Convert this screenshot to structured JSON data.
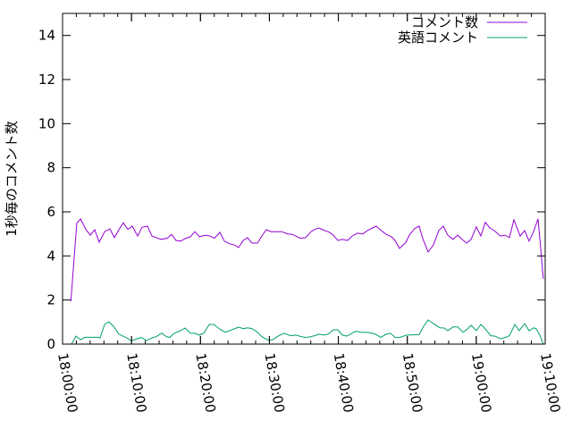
{
  "chart_data": {
    "type": "line",
    "title": "",
    "xlabel": "",
    "ylabel": "1秒毎のコメント数",
    "xlim": [
      "18:00:00",
      "19:10:00"
    ],
    "ylim": [
      0,
      15
    ],
    "xticks": [
      "18:00:00",
      "18:10:00",
      "18:20:00",
      "18:30:00",
      "18:40:00",
      "18:50:00",
      "19:00:00",
      "19:10:00"
    ],
    "yticks": [
      "0",
      "2",
      "4",
      "6",
      "8",
      "10",
      "12",
      "14"
    ],
    "grid": false,
    "legend": "top-right",
    "series": [
      {
        "name": "コメント数",
        "color": "#9400d3",
        "x": [
          "18:01:12",
          "18:02:04",
          "18:02:36",
          "18:03:22",
          "18:04:01",
          "18:04:40",
          "18:05:19",
          "18:06:06",
          "18:06:52",
          "18:07:31",
          "18:08:10",
          "18:08:49",
          "18:09:28",
          "18:10:07",
          "18:10:53",
          "18:11:32",
          "18:12:19",
          "18:12:58",
          "18:14:16",
          "18:15:10",
          "18:15:49",
          "18:16:28",
          "18:17:07",
          "18:17:53",
          "18:18:32",
          "18:19:11",
          "18:19:50",
          "18:20:44",
          "18:21:23",
          "18:22:02",
          "18:22:49",
          "18:23:28",
          "18:24:14",
          "18:24:53",
          "18:25:32",
          "18:26:11",
          "18:26:50",
          "18:27:29",
          "18:28:16",
          "18:28:54",
          "18:29:33",
          "18:30:12",
          "18:31:46",
          "18:32:40",
          "18:33:19",
          "18:34:29",
          "18:35:16",
          "18:36:02",
          "18:36:33",
          "18:37:12",
          "18:37:51",
          "18:38:30",
          "18:39:09",
          "18:39:56",
          "18:40:34",
          "18:41:21",
          "18:42:00",
          "18:42:47",
          "18:43:33",
          "18:44:12",
          "18:44:59",
          "18:45:30",
          "18:46:09",
          "18:46:56",
          "18:47:42",
          "18:48:13",
          "18:48:52",
          "18:49:47",
          "18:50:18",
          "18:51:04",
          "18:51:43",
          "18:52:14",
          "18:53:01",
          "18:53:48",
          "18:54:34",
          "18:55:13",
          "18:55:52",
          "18:56:39",
          "18:57:18",
          "18:57:57",
          "18:58:36",
          "18:59:15",
          "19:00:01",
          "19:00:40",
          "19:01:19",
          "19:01:58",
          "19:02:37",
          "19:03:31",
          "19:04:10",
          "19:04:49",
          "19:05:28",
          "19:06:22",
          "19:07:01",
          "19:07:40",
          "19:08:19",
          "19:08:58",
          "19:09:21",
          "19:09:44"
        ],
        "values": [
          1.94,
          5.48,
          5.68,
          5.2,
          4.94,
          5.19,
          4.62,
          5.1,
          5.23,
          4.83,
          5.19,
          5.5,
          5.2,
          5.35,
          4.9,
          5.3,
          5.35,
          4.9,
          4.75,
          4.8,
          4.98,
          4.7,
          4.67,
          4.8,
          4.87,
          5.1,
          4.87,
          4.94,
          4.9,
          4.8,
          5.07,
          4.67,
          4.55,
          4.5,
          4.38,
          4.7,
          4.83,
          4.58,
          4.58,
          4.9,
          5.19,
          5.1,
          5.1,
          5.0,
          4.98,
          4.8,
          4.83,
          5.1,
          5.2,
          5.27,
          5.17,
          5.1,
          4.98,
          4.7,
          4.75,
          4.7,
          4.9,
          5.03,
          5.0,
          5.15,
          5.27,
          5.35,
          5.17,
          4.98,
          4.87,
          4.7,
          4.34,
          4.6,
          4.94,
          5.24,
          5.35,
          4.8,
          4.18,
          4.5,
          5.15,
          5.35,
          4.94,
          4.75,
          4.94,
          4.75,
          4.58,
          4.75,
          5.32,
          4.9,
          5.52,
          5.27,
          5.15,
          4.9,
          4.94,
          4.83,
          5.64,
          4.9,
          5.15,
          4.67,
          5.1,
          5.68,
          4.34,
          2.96
        ]
      },
      {
        "name": "英語コメント",
        "color": "#009e73",
        "x": [
          "18:01:18",
          "18:01:57",
          "18:02:36",
          "18:03:14",
          "18:05:11",
          "18:05:27",
          "18:06:06",
          "18:06:44",
          "18:07:23",
          "18:08:10",
          "18:09:20",
          "18:09:59",
          "18:10:46",
          "18:11:24",
          "18:12:11",
          "18:12:58",
          "18:13:37",
          "18:14:23",
          "18:15:02",
          "18:15:33",
          "18:16:12",
          "18:17:07",
          "18:17:46",
          "18:18:32",
          "18:19:11",
          "18:19:50",
          "18:20:29",
          "18:21:16",
          "18:21:54",
          "18:22:57",
          "18:23:36",
          "18:24:14",
          "18:24:53",
          "18:25:32",
          "18:26:11",
          "18:26:50",
          "18:27:29",
          "18:28:08",
          "18:28:54",
          "18:29:49",
          "18:30:28",
          "18:31:22",
          "18:32:09",
          "18:33:03",
          "18:33:50",
          "18:34:37",
          "18:35:16",
          "18:36:02",
          "18:36:33",
          "18:37:12",
          "18:37:51",
          "18:38:30",
          "18:39:17",
          "18:39:56",
          "18:40:34",
          "18:41:13",
          "18:42:31",
          "18:43:26",
          "18:44:20",
          "18:45:22",
          "18:46:09",
          "18:46:56",
          "18:47:34",
          "18:48:13",
          "18:48:52",
          "18:49:55",
          "18:51:43",
          "18:52:22",
          "18:53:01",
          "18:53:48",
          "18:54:42",
          "18:55:21",
          "18:55:52",
          "18:56:39",
          "18:57:18",
          "18:58:05",
          "18:58:36",
          "18:59:15",
          "19:00:01",
          "19:00:40",
          "19:01:19",
          "19:02:06",
          "19:02:44",
          "19:03:31",
          "19:04:18",
          "19:04:49",
          "19:05:36",
          "19:06:14",
          "19:07:01",
          "19:07:40",
          "19:08:19",
          "19:08:42",
          "19:09:13",
          "19:09:44"
        ],
        "values": [
          0.0,
          0.36,
          0.2,
          0.31,
          0.31,
          0.28,
          0.9,
          1.01,
          0.81,
          0.45,
          0.28,
          0.14,
          0.24,
          0.3,
          0.16,
          0.28,
          0.34,
          0.5,
          0.34,
          0.31,
          0.49,
          0.61,
          0.73,
          0.49,
          0.49,
          0.41,
          0.49,
          0.89,
          0.89,
          0.65,
          0.54,
          0.61,
          0.69,
          0.77,
          0.7,
          0.74,
          0.7,
          0.57,
          0.34,
          0.18,
          0.2,
          0.38,
          0.49,
          0.38,
          0.41,
          0.34,
          0.3,
          0.34,
          0.38,
          0.45,
          0.41,
          0.45,
          0.65,
          0.65,
          0.41,
          0.36,
          0.58,
          0.53,
          0.53,
          0.45,
          0.3,
          0.45,
          0.49,
          0.3,
          0.3,
          0.41,
          0.43,
          0.81,
          1.1,
          0.93,
          0.74,
          0.73,
          0.61,
          0.78,
          0.78,
          0.54,
          0.65,
          0.85,
          0.61,
          0.89,
          0.69,
          0.38,
          0.36,
          0.24,
          0.31,
          0.38,
          0.89,
          0.61,
          0.93,
          0.61,
          0.74,
          0.69,
          0.41,
          0.0
        ]
      }
    ]
  }
}
